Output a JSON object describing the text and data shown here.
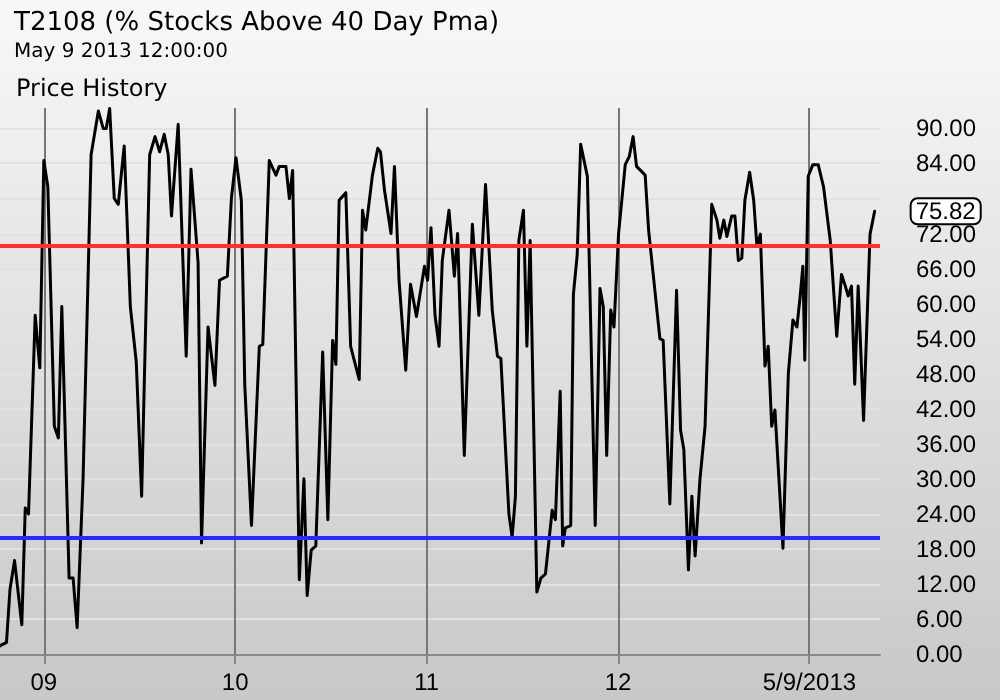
{
  "chart_data": {
    "type": "line",
    "title": "T2108 (% Stocks Above 40 Day Pma)",
    "subtitle": "May 9 2013 12:00:00",
    "annotations": [
      "Price History",
      {
        "text": "75.82",
        "x": 2013.341,
        "y": 75.82
      }
    ],
    "xlim": [
      2008.771,
      2013.369
    ],
    "xticks": [
      {
        "value": 2009,
        "label": "09"
      },
      {
        "value": 2010,
        "label": "10"
      },
      {
        "value": 2011,
        "label": "11"
      },
      {
        "value": 2012,
        "label": "12"
      },
      {
        "value": 2013,
        "label": "5/9/2013"
      }
    ],
    "ylim": [
      0,
      93.5
    ],
    "yticks": [
      {
        "value": 0,
        "label": "0.00"
      },
      {
        "value": 6,
        "label": "6.00"
      },
      {
        "value": 12,
        "label": "12.00"
      },
      {
        "value": 18,
        "label": "18.00"
      },
      {
        "value": 24,
        "label": "24.00"
      },
      {
        "value": 30,
        "label": "30.00"
      },
      {
        "value": 36,
        "label": "36.00"
      },
      {
        "value": 42,
        "label": "42.00"
      },
      {
        "value": 48,
        "label": "48.00"
      },
      {
        "value": 54,
        "label": "54.00"
      },
      {
        "value": 60,
        "label": "60.00"
      },
      {
        "value": 66,
        "label": "66.00"
      },
      {
        "value": 72,
        "label": "72.00"
      },
      {
        "value": 78,
        "label": null
      },
      {
        "value": 84,
        "label": "84.00"
      },
      {
        "value": 90,
        "label": "90.00"
      }
    ],
    "grid": true,
    "marker": "none",
    "line_style": "solid",
    "ref_lines": [
      {
        "axis": "y",
        "value": 70,
        "color": "#ff3030"
      },
      {
        "axis": "y",
        "value": 20,
        "color": "#2828ff"
      }
    ],
    "series": [
      {
        "color": "#000000",
        "x": [
          2008.771,
          2008.805,
          2008.823,
          2008.847,
          2008.885,
          2008.903,
          2008.92,
          2008.955,
          2008.979,
          2009.0,
          2009.021,
          2009.055,
          2009.076,
          2009.094,
          2009.132,
          2009.153,
          2009.174,
          2009.205,
          2009.247,
          2009.285,
          2009.31,
          2009.326,
          2009.344,
          2009.368,
          2009.389,
          2009.42,
          2009.452,
          2009.483,
          2009.511,
          2009.553,
          2009.581,
          2009.605,
          2009.629,
          2009.65,
          2009.667,
          2009.702,
          2009.744,
          2009.769,
          2009.806,
          2009.824,
          2009.858,
          2009.894,
          2009.918,
          2009.959,
          2009.98,
          2010.004,
          2010.032,
          2010.05,
          2010.085,
          2010.126,
          2010.144,
          2010.178,
          2010.213,
          2010.23,
          2010.265,
          2010.283,
          2010.3,
          2010.335,
          2010.359,
          2010.376,
          2010.397,
          2010.421,
          2010.457,
          2010.484,
          2010.509,
          2010.526,
          2010.543,
          2010.578,
          2010.603,
          2010.648,
          2010.665,
          2010.682,
          2010.717,
          2010.745,
          2010.759,
          2010.78,
          2010.814,
          2010.832,
          2010.856,
          2010.891,
          2010.916,
          2010.947,
          2010.989,
          2011.005,
          2011.023,
          2011.044,
          2011.065,
          2011.082,
          2011.117,
          2011.145,
          2011.162,
          2011.197,
          2011.239,
          2011.273,
          2011.308,
          2011.343,
          2011.37,
          2011.388,
          2011.43,
          2011.447,
          2011.464,
          2011.482,
          2011.506,
          2011.524,
          2011.541,
          2011.576,
          2011.597,
          2011.621,
          2011.656,
          2011.673,
          2011.698,
          2011.711,
          2011.725,
          2011.753,
          2011.767,
          2011.787,
          2011.805,
          2011.84,
          2011.881,
          2011.906,
          2011.923,
          2011.941,
          2011.962,
          2011.979,
          2012.003,
          2012.038,
          2012.059,
          2012.079,
          2012.097,
          2012.142,
          2012.16,
          2012.184,
          2012.219,
          2012.236,
          2012.271,
          2012.306,
          2012.327,
          2012.344,
          2012.368,
          2012.386,
          2012.403,
          2012.428,
          2012.455,
          2012.49,
          2012.517,
          2012.532,
          2012.553,
          2012.569,
          2012.594,
          2012.611,
          2012.629,
          2012.647,
          2012.663,
          2012.688,
          2012.709,
          2012.726,
          2012.744,
          2012.768,
          2012.785,
          2012.803,
          2012.82,
          2012.862,
          2012.89,
          2012.914,
          2012.935,
          2012.952,
          2012.966,
          2012.976,
          2012.994,
          2013.018,
          2013.046,
          2013.074,
          2013.109,
          2013.143,
          2013.168,
          2013.185,
          2013.203,
          2013.22,
          2013.237,
          2013.255,
          2013.283,
          2013.317,
          2013.341
        ],
        "values": [
          1.4,
          2,
          11,
          16,
          5,
          25,
          24,
          58,
          49,
          84.5,
          80,
          39,
          37,
          59.5,
          13,
          13,
          4.5,
          30,
          85.5,
          93,
          90,
          90,
          93.4,
          78,
          77,
          87,
          59.5,
          50,
          27,
          85.5,
          88.6,
          86,
          89,
          85.5,
          75,
          90.7,
          51,
          83,
          67,
          19,
          56,
          46,
          64,
          64.7,
          78,
          85,
          77.7,
          46,
          22,
          52.7,
          53,
          84.5,
          82,
          83.5,
          83.5,
          78,
          82.8,
          12.7,
          30,
          10,
          17.8,
          18.5,
          51.7,
          23,
          53.7,
          49.6,
          77.7,
          79,
          52.7,
          47,
          76,
          72.6,
          82,
          86.6,
          86,
          79.4,
          72,
          83.5,
          64,
          48.6,
          63.3,
          57.8,
          66.4,
          64,
          73,
          58,
          52.7,
          67.4,
          76,
          64.7,
          72,
          34,
          73.6,
          58,
          80.4,
          58.9,
          51,
          50.6,
          24,
          20,
          27,
          70.8,
          76,
          52.7,
          70.8,
          10.6,
          13,
          13.7,
          24.6,
          23,
          45,
          18.5,
          21.6,
          22,
          61.6,
          68.4,
          87.3,
          81.8,
          22,
          62.6,
          59.5,
          34,
          58.9,
          56,
          72,
          83.8,
          85.2,
          88.6,
          83.5,
          82,
          72.6,
          65,
          54,
          53.7,
          25.7,
          62.3,
          38.3,
          35,
          14.4,
          27,
          16.8,
          29.8,
          39,
          77,
          74.3,
          71.2,
          74.3,
          71.5,
          75,
          75,
          67.4,
          67.8,
          77.7,
          82.5,
          77.7,
          69.8,
          71.9,
          49.3,
          52.7,
          39,
          41.8,
          18.1,
          48,
          57.2,
          56,
          61.3,
          66.4,
          50.3,
          81.8,
          83.8,
          83.8,
          80,
          70.8,
          54.4,
          65,
          63.3,
          61.3,
          63,
          46.2,
          63,
          40,
          71.9,
          75.82
        ]
      }
    ]
  }
}
